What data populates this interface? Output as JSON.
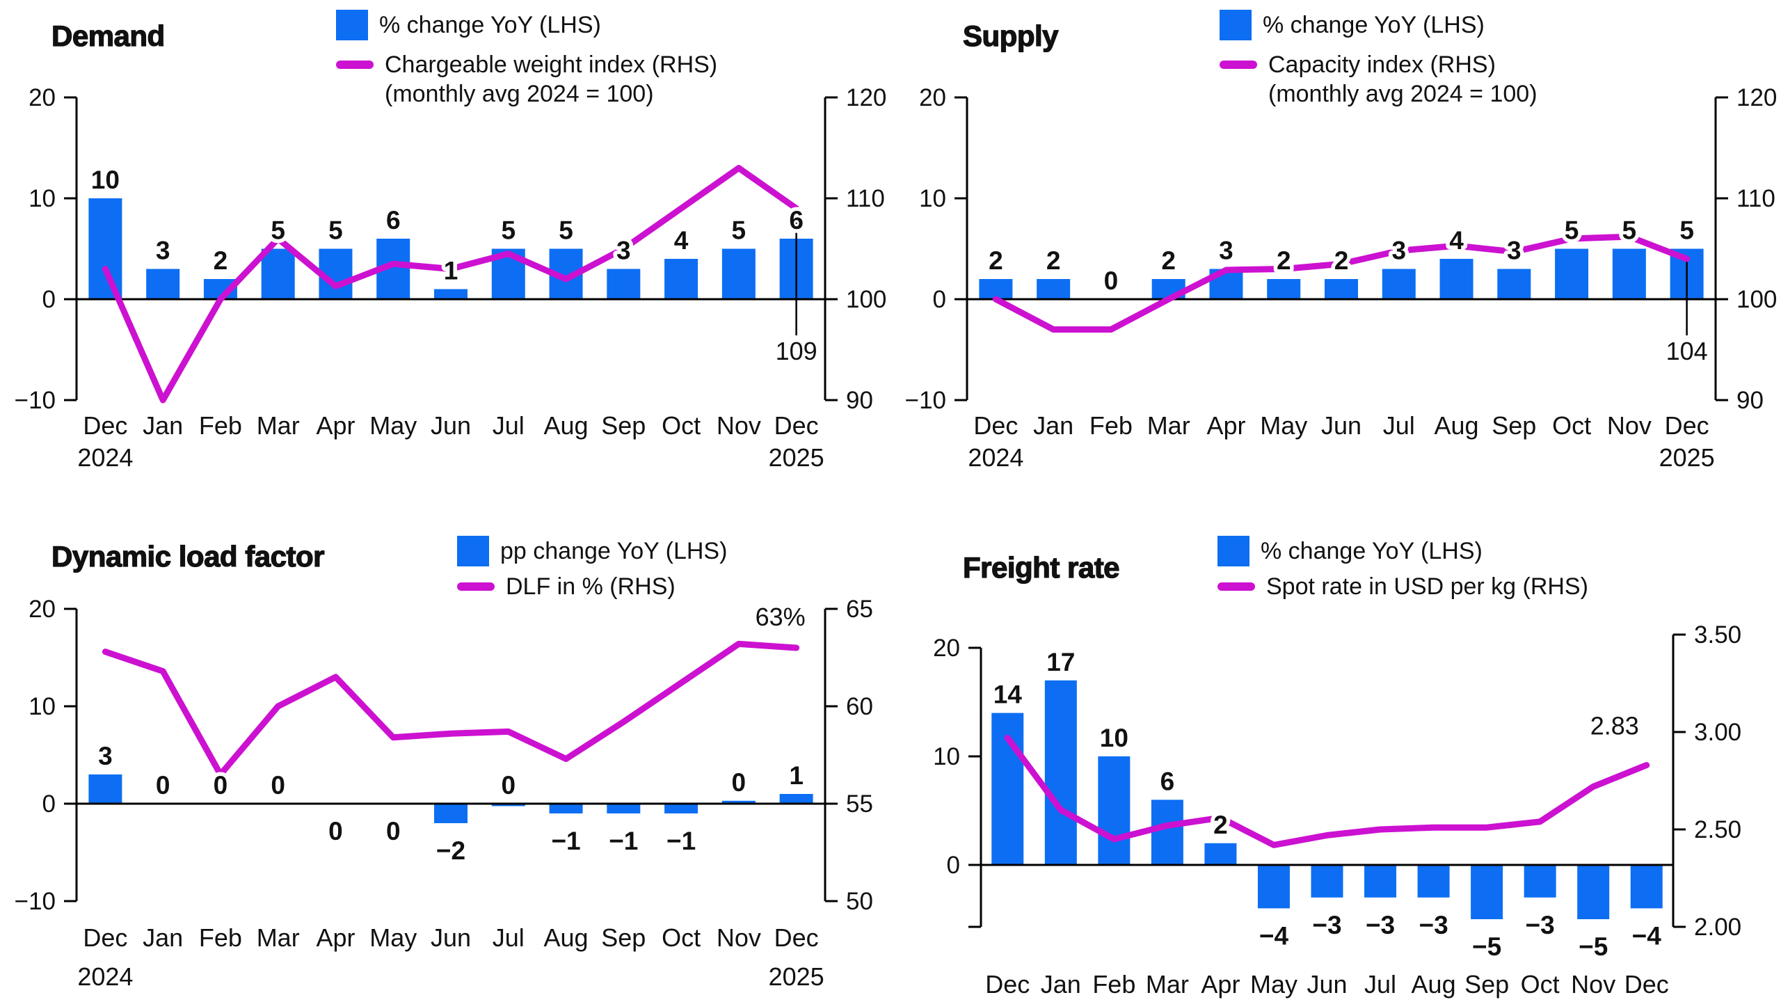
{
  "colors": {
    "bar": "#0d6ef4",
    "line": "#cc11d1",
    "text": "#111111",
    "axis": "#000000"
  },
  "chart_data": [
    {
      "type": "bar+line",
      "title": "Demand",
      "categories": [
        "Dec",
        "Jan",
        "Feb",
        "Mar",
        "Apr",
        "May",
        "Jun",
        "Jul",
        "Aug",
        "Sep",
        "Oct",
        "Nov",
        "Dec"
      ],
      "x_year_labels": {
        "first": "2024",
        "last": "2025"
      },
      "left_axis": {
        "ticks": [
          20,
          10,
          0,
          -10
        ],
        "tick_labels": [
          "20",
          "10",
          "0",
          "−10"
        ]
      },
      "right_axis": {
        "ticks": [
          120,
          110,
          100,
          90
        ],
        "tick_labels": [
          "120",
          "110",
          "100",
          "90"
        ]
      },
      "series": [
        {
          "name": "% change YoY (LHS)",
          "type": "bar",
          "axis": "left",
          "values": [
            10,
            3,
            2,
            5,
            5,
            6,
            1,
            5,
            5,
            3,
            4,
            5,
            6
          ],
          "labels": [
            "10",
            "3",
            "2",
            "5",
            "5",
            "6",
            "1",
            "5",
            "5",
            "3",
            "4",
            "5",
            "6"
          ],
          "label_side": [
            "above",
            "above",
            "above",
            "above",
            "above",
            "above",
            "above",
            "above",
            "above",
            "above",
            "above",
            "above",
            "above"
          ]
        },
        {
          "name": "Chargeable weight index (RHS)",
          "note": "(monthly avg 2024 = 100)",
          "type": "line",
          "axis": "right",
          "values": [
            103,
            90,
            100,
            106,
            101.3,
            103.5,
            103,
            104.5,
            102,
            105,
            109,
            113,
            109
          ],
          "end_label": "109"
        }
      ]
    },
    {
      "type": "bar+line",
      "title": "Supply",
      "categories": [
        "Dec",
        "Jan",
        "Feb",
        "Mar",
        "Apr",
        "May",
        "Jun",
        "Jul",
        "Aug",
        "Sep",
        "Oct",
        "Nov",
        "Dec"
      ],
      "x_year_labels": {
        "first": "2024",
        "last": "2025"
      },
      "left_axis": {
        "ticks": [
          20,
          10,
          0,
          -10
        ],
        "tick_labels": [
          "20",
          "10",
          "0",
          "−10"
        ]
      },
      "right_axis": {
        "ticks": [
          120,
          110,
          100,
          90
        ],
        "tick_labels": [
          "120",
          "110",
          "100",
          "90"
        ]
      },
      "series": [
        {
          "name": "% change YoY (LHS)",
          "type": "bar",
          "axis": "left",
          "values": [
            2,
            2,
            0,
            2,
            3,
            2,
            2,
            3,
            4,
            3,
            5,
            5,
            5
          ],
          "labels": [
            "2",
            "2",
            "0",
            "2",
            "3",
            "2",
            "2",
            "3",
            "4",
            "3",
            "5",
            "5",
            "5"
          ],
          "label_side": [
            "above",
            "above",
            "above",
            "above",
            "above",
            "above",
            "above",
            "above",
            "above",
            "above",
            "above",
            "above",
            "above"
          ]
        },
        {
          "name": "Capacity index (RHS)",
          "note": "(monthly avg 2024 = 100)",
          "type": "line",
          "axis": "right",
          "values": [
            100,
            97,
            97,
            100,
            102.9,
            103,
            103.5,
            104.8,
            105.3,
            104.7,
            106,
            106.2,
            104
          ],
          "end_label": "104"
        }
      ]
    },
    {
      "type": "bar+line",
      "title": "Dynamic load factor",
      "categories": [
        "Dec",
        "Jan",
        "Feb",
        "Mar",
        "Apr",
        "May",
        "Jun",
        "Jul",
        "Aug",
        "Sep",
        "Oct",
        "Nov",
        "Dec"
      ],
      "x_year_labels": {
        "first": "2024",
        "last": "2025"
      },
      "left_axis": {
        "ticks": [
          20,
          10,
          0,
          -10
        ],
        "tick_labels": [
          "20",
          "10",
          "0",
          "−10"
        ]
      },
      "right_axis": {
        "ticks": [
          65,
          60,
          55,
          50
        ],
        "tick_labels": [
          "65",
          "60",
          "55",
          "50"
        ]
      },
      "series": [
        {
          "name": "pp change YoY (LHS)",
          "type": "bar",
          "axis": "left",
          "values": [
            3,
            0,
            0,
            0,
            0,
            0,
            -2,
            0,
            -1,
            -1,
            -1,
            0,
            1
          ],
          "values_drawn": [
            3,
            0,
            0,
            0,
            0,
            0,
            -2,
            -0.25,
            -1,
            -1,
            -1,
            0.3,
            1
          ],
          "labels": [
            "3",
            "0",
            "0",
            "0",
            "0",
            "0",
            "−2",
            "0",
            "−1",
            "−1",
            "−1",
            "0",
            "1"
          ],
          "label_side": [
            "above",
            "above",
            "above",
            "above",
            "below",
            "below",
            "below",
            "above",
            "below",
            "below",
            "below",
            "above",
            "above"
          ]
        },
        {
          "name": "DLF in % (RHS)",
          "type": "line",
          "axis": "right",
          "values": [
            62.8,
            61.8,
            56.5,
            60,
            61.5,
            58.4,
            58.6,
            58.7,
            57.3,
            59.2,
            61.2,
            63.2,
            63
          ],
          "end_label": "63%"
        }
      ]
    },
    {
      "type": "bar+line",
      "title": "Freight rate",
      "categories": [
        "Dec",
        "Jan",
        "Feb",
        "Mar",
        "Apr",
        "May",
        "Jun",
        "Jul",
        "Aug",
        "Sep",
        "Oct",
        "Nov",
        "Dec"
      ],
      "left_axis": {
        "ticks": [
          20,
          10,
          0
        ],
        "tick_labels": [
          "20",
          "10",
          "0"
        ]
      },
      "right_axis": {
        "ticks": [
          3.5,
          3.0,
          2.5,
          2.0
        ],
        "tick_labels": [
          "3.50",
          "3.00",
          "2.50",
          "2.00"
        ]
      },
      "series": [
        {
          "name": "% change YoY (LHS)",
          "type": "bar",
          "axis": "left",
          "values": [
            14,
            17,
            10,
            6,
            2,
            -4,
            -3,
            -3,
            -3,
            -5,
            -3,
            -5,
            -4
          ],
          "labels": [
            "14",
            "17",
            "10",
            "6",
            "2",
            "−4",
            "−3",
            "−3",
            "−3",
            "−5",
            "−3",
            "−5",
            "−4"
          ],
          "label_side": [
            "above",
            "above",
            "above",
            "above",
            "above",
            "below",
            "below",
            "below",
            "below",
            "below",
            "below",
            "below",
            "below"
          ]
        },
        {
          "name": "Spot rate in USD per kg (RHS)",
          "type": "line",
          "axis": "right",
          "values": [
            2.97,
            2.6,
            2.45,
            2.52,
            2.56,
            2.42,
            2.47,
            2.5,
            2.51,
            2.51,
            2.54,
            2.72,
            2.83
          ],
          "end_label": "2.83"
        }
      ]
    }
  ]
}
